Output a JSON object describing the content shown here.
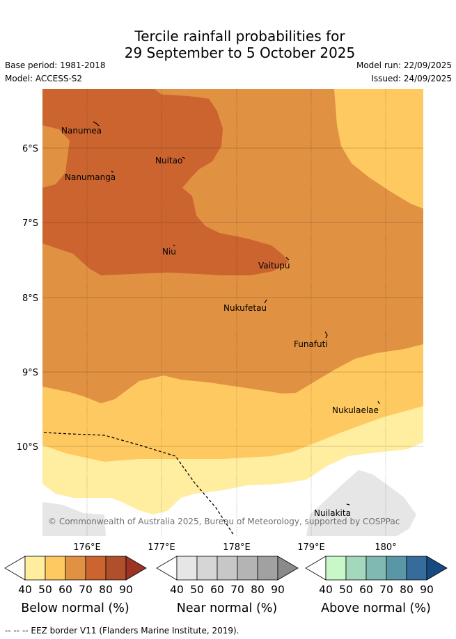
{
  "title": {
    "line1": "Tercile rainfall probabilities for",
    "line2": "29 September to 5 October 2025"
  },
  "meta": {
    "base_period": "Base period: 1981-2018",
    "model": "Model: ACCESS-S2",
    "model_run": "Model run: 22/09/2025",
    "issued": "Issued: 24/09/2025"
  },
  "axes": {
    "lat_labels": [
      "6°S",
      "7°S",
      "8°S",
      "9°S",
      "10°S"
    ],
    "lon_labels": [
      "176°E",
      "177°E",
      "178°E",
      "179°E",
      "180°"
    ]
  },
  "places": [
    {
      "name": "Nanumea"
    },
    {
      "name": "Nuitao"
    },
    {
      "name": "Nanumanga"
    },
    {
      "name": "Niu"
    },
    {
      "name": "Vaitupu"
    },
    {
      "name": "Nukufetau"
    },
    {
      "name": "Funafuti"
    },
    {
      "name": "Nukulaelae"
    },
    {
      "name": "Nuilakita"
    }
  ],
  "copyright": "© Commonwealth of Australia 2025, Bureau of Meteorology, supported by COSPPac",
  "colorbars": [
    {
      "title": "Below normal (%)",
      "ticks": [
        "40",
        "50",
        "60",
        "70",
        "80",
        "90"
      ],
      "colors": [
        "#ffffff",
        "#ffeda0",
        "#fec960",
        "#e09142",
        "#cc6430",
        "#b04f2c",
        "#9c3323"
      ]
    },
    {
      "title": "Near normal (%)",
      "ticks": [
        "40",
        "50",
        "60",
        "70",
        "80",
        "90"
      ],
      "colors": [
        "#ffffff",
        "#e6e6e6",
        "#d6d6d6",
        "#c7c7c7",
        "#b4b4b4",
        "#a1a1a1",
        "#8a8a8a"
      ]
    },
    {
      "title": "Above normal (%)",
      "ticks": [
        "40",
        "50",
        "60",
        "70",
        "80",
        "90"
      ],
      "colors": [
        "#ffffff",
        "#c8f7c8",
        "#a3d8bc",
        "#80b8b2",
        "#5a97a6",
        "#356c9c",
        "#184a82"
      ]
    }
  ],
  "footnote": "-- -- -- EEZ border V11 (Flanders Marine Institute, 2019)."
}
